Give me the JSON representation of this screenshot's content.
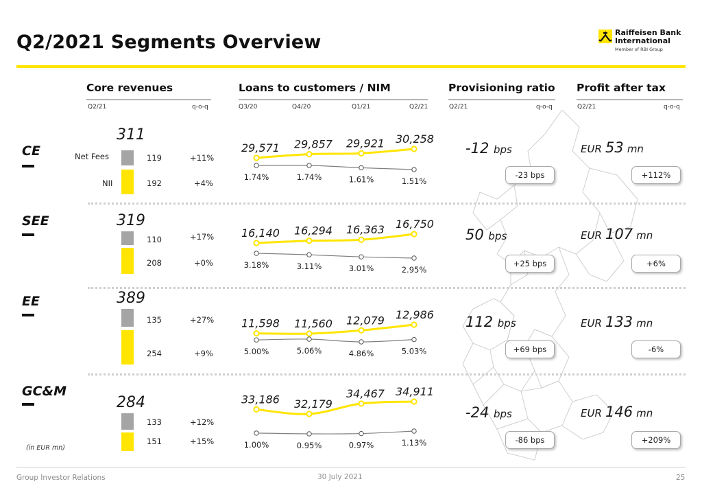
{
  "header": {
    "title": "Q2/2021 Segments Overview"
  },
  "brand": {
    "name_line1": "Raiffeisen Bank",
    "name_line2": "International",
    "tagline": "Member of RBI Group",
    "accent_color": "#FFE500",
    "fee_bar_color": "#A5A5A5",
    "nim_line_color": "#7F7F7F"
  },
  "columns": {
    "core": {
      "title": "Core revenues",
      "left": "Q2/21",
      "right": "q-o-q"
    },
    "loans": {
      "title": "Loans to customers / NIM",
      "quarters": [
        "Q3/20",
        "Q4/20",
        "Q1/21",
        "Q2/21"
      ]
    },
    "provisioning": {
      "title": "Provisioning ratio",
      "left": "Q2/21",
      "right": "q-o-q"
    },
    "profit": {
      "title": "Profit after tax",
      "left": "Q2/21",
      "right": "q-o-q"
    }
  },
  "row_labels": {
    "net_fees": "Net Fees",
    "nii": "NII"
  },
  "units_note": "(in EUR mn)",
  "chart_data": {
    "type": "table",
    "quarters": [
      "Q3/20",
      "Q4/20",
      "Q1/21",
      "Q2/21"
    ],
    "segments": [
      {
        "name": "CE",
        "core_revenues": {
          "total": "311",
          "net_fees": "119",
          "net_fees_qoq": "+11%",
          "nii": "192",
          "nii_qoq": "+4%"
        },
        "loans": [
          29571,
          29857,
          29921,
          30258
        ],
        "loans_labels": [
          "29,571",
          "29,857",
          "29,921",
          "30,258"
        ],
        "nim": [
          1.74,
          1.74,
          1.61,
          1.51
        ],
        "nim_labels": [
          "1.74%",
          "1.74%",
          "1.61%",
          "1.51%"
        ],
        "provisioning": {
          "value": "-12",
          "unit": "bps",
          "qoq": "-23 bps"
        },
        "profit": {
          "currency": "EUR",
          "value": "53",
          "unit": "mn",
          "qoq": "+112%"
        }
      },
      {
        "name": "SEE",
        "core_revenues": {
          "total": "319",
          "net_fees": "110",
          "net_fees_qoq": "+17%",
          "nii": "208",
          "nii_qoq": "+0%"
        },
        "loans": [
          16140,
          16294,
          16363,
          16750
        ],
        "loans_labels": [
          "16,140",
          "16,294",
          "16,363",
          "16,750"
        ],
        "nim": [
          3.18,
          3.11,
          3.01,
          2.95
        ],
        "nim_labels": [
          "3.18%",
          "3.11%",
          "3.01%",
          "2.95%"
        ],
        "provisioning": {
          "value": "50",
          "unit": "bps",
          "qoq": "+25 bps"
        },
        "profit": {
          "currency": "EUR",
          "value": "107",
          "unit": "mn",
          "qoq": "+6%"
        }
      },
      {
        "name": "EE",
        "core_revenues": {
          "total": "389",
          "net_fees": "135",
          "net_fees_qoq": "+27%",
          "nii": "254",
          "nii_qoq": "+9%"
        },
        "loans": [
          11598,
          11560,
          12079,
          12986
        ],
        "loans_labels": [
          "11,598",
          "11,560",
          "12,079",
          "12,986"
        ],
        "nim": [
          5.0,
          5.06,
          4.86,
          5.03
        ],
        "nim_labels": [
          "5.00%",
          "5.06%",
          "4.86%",
          "5.03%"
        ],
        "provisioning": {
          "value": "112",
          "unit": "bps",
          "qoq": "+69 bps"
        },
        "profit": {
          "currency": "EUR",
          "value": "133",
          "unit": "mn",
          "qoq": "-6%"
        }
      },
      {
        "name": "GC&M",
        "core_revenues": {
          "total": "284",
          "net_fees": "133",
          "net_fees_qoq": "+12%",
          "nii": "151",
          "nii_qoq": "+15%"
        },
        "loans": [
          33186,
          32179,
          34467,
          34911
        ],
        "loans_labels": [
          "33,186",
          "32,179",
          "34,467",
          "34,911"
        ],
        "nim": [
          1.0,
          0.95,
          0.97,
          1.13
        ],
        "nim_labels": [
          "1.00%",
          "0.95%",
          "0.97%",
          "1.13%"
        ],
        "provisioning": {
          "value": "-24",
          "unit": "bps",
          "qoq": "-86 bps"
        },
        "profit": {
          "currency": "EUR",
          "value": "146",
          "unit": "mn",
          "qoq": "+209%"
        }
      }
    ]
  },
  "footer": {
    "left": "Group Investor Relations",
    "center": "30 July 2021",
    "page": "25"
  }
}
